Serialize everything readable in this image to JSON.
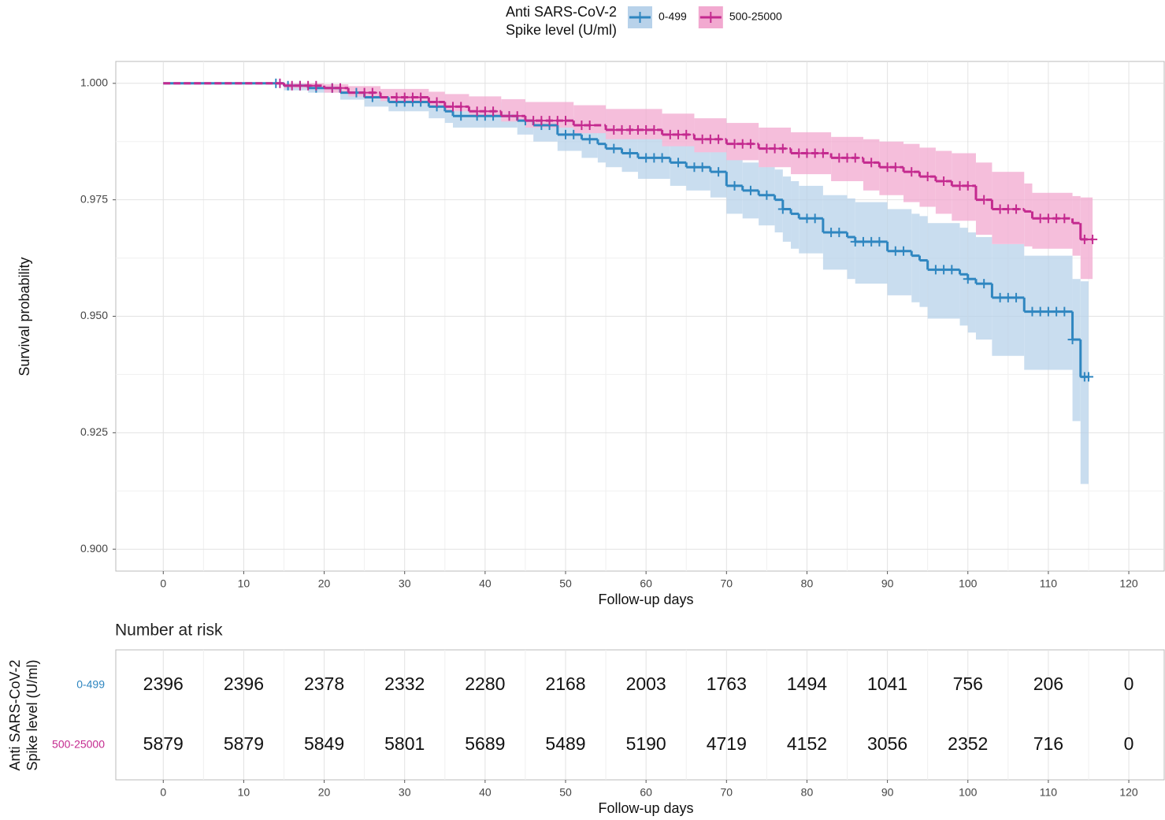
{
  "chart_data": [
    {
      "type": "survival",
      "legend_title": [
        "Anti SARS-CoV-2",
        "Spike level (U/ml)"
      ],
      "x_label": "Follow-up days",
      "y_label": "Survival probability",
      "xlim": [
        -5.9,
        124.4
      ],
      "ylim": [
        0.8953,
        1.0047
      ],
      "xticks": [
        0,
        10,
        20,
        30,
        40,
        50,
        60,
        70,
        80,
        90,
        100,
        110,
        120
      ],
      "yticks": [
        {
          "value": 0.9,
          "label": "0.900"
        },
        {
          "value": 0.925,
          "label": "0.925"
        },
        {
          "value": 0.95,
          "label": "0.950"
        },
        {
          "value": 0.975,
          "label": "0.975"
        },
        {
          "value": 1.0,
          "label": "1.000"
        }
      ],
      "grid": "major+minor",
      "series": [
        {
          "name": "0-499",
          "color": "#2f86c0",
          "band_color": "#b8d2ea",
          "x": [
            0,
            15,
            18,
            22,
            25,
            28,
            33,
            35,
            36,
            44,
            46,
            49,
            52,
            54,
            55,
            57,
            59,
            63,
            65,
            68,
            70,
            72,
            74,
            76,
            77,
            78,
            79,
            82,
            85,
            86,
            90,
            93,
            94,
            95,
            99,
            100,
            101,
            103,
            107,
            113,
            114,
            115
          ],
          "values": [
            1.0,
            0.9995,
            0.999,
            0.998,
            0.997,
            0.996,
            0.995,
            0.994,
            0.993,
            0.992,
            0.991,
            0.989,
            0.988,
            0.987,
            0.986,
            0.985,
            0.984,
            0.983,
            0.982,
            0.981,
            0.978,
            0.977,
            0.976,
            0.975,
            0.973,
            0.972,
            0.971,
            0.968,
            0.967,
            0.966,
            0.964,
            0.963,
            0.962,
            0.96,
            0.959,
            0.958,
            0.957,
            0.954,
            0.951,
            0.945,
            0.937,
            0.937
          ],
          "lower": [
            1.0,
            0.9985,
            0.998,
            0.9965,
            0.995,
            0.994,
            0.9925,
            0.9915,
            0.9905,
            0.989,
            0.9875,
            0.9855,
            0.984,
            0.983,
            0.982,
            0.981,
            0.9795,
            0.978,
            0.977,
            0.9755,
            0.972,
            0.971,
            0.9695,
            0.968,
            0.966,
            0.9645,
            0.9635,
            0.96,
            0.958,
            0.957,
            0.9545,
            0.953,
            0.952,
            0.9495,
            0.948,
            0.9465,
            0.945,
            0.9415,
            0.9385,
            0.9275,
            0.914,
            0.914
          ],
          "upper": [
            1.0,
            1.0,
            0.9998,
            0.9993,
            0.9987,
            0.998,
            0.9975,
            0.9968,
            0.996,
            0.9953,
            0.9945,
            0.9928,
            0.992,
            0.9912,
            0.9905,
            0.9897,
            0.9888,
            0.988,
            0.9872,
            0.9865,
            0.9838,
            0.983,
            0.9822,
            0.9815,
            0.98,
            0.979,
            0.978,
            0.976,
            0.9753,
            0.9745,
            0.973,
            0.972,
            0.9715,
            0.97,
            0.969,
            0.968,
            0.967,
            0.9655,
            0.963,
            0.958,
            0.9575,
            0.9575
          ],
          "censor_x": [
            14,
            15.5,
            17,
            19,
            21,
            24,
            26,
            29,
            30,
            31,
            32,
            34,
            37,
            39,
            40,
            41,
            43,
            45,
            47,
            48,
            50,
            51,
            53,
            56,
            58,
            60,
            61,
            62,
            64,
            66,
            67,
            69,
            71,
            73,
            75,
            77,
            80,
            81,
            83,
            84,
            86,
            87,
            88,
            89,
            91,
            92,
            96,
            97,
            98,
            100,
            102,
            104,
            105,
            106,
            108,
            109,
            110,
            111,
            112,
            113,
            114.5,
            115
          ]
        },
        {
          "name": "500-25000",
          "color": "#c42a8f",
          "band_color": "#f2a9d0",
          "x": [
            0,
            15,
            20,
            23,
            27,
            33,
            35,
            38,
            42,
            45,
            51,
            55,
            62,
            66,
            70,
            74,
            78,
            83,
            87,
            89,
            92,
            94,
            96,
            98,
            101,
            103,
            107,
            108,
            113,
            114,
            115.5
          ],
          "values": [
            1.0,
            0.9995,
            0.999,
            0.998,
            0.997,
            0.996,
            0.995,
            0.994,
            0.993,
            0.992,
            0.991,
            0.99,
            0.989,
            0.988,
            0.987,
            0.986,
            0.985,
            0.984,
            0.983,
            0.982,
            0.981,
            0.98,
            0.979,
            0.978,
            0.975,
            0.973,
            0.9725,
            0.971,
            0.97,
            0.9665,
            0.9665
          ],
          "lower": [
            1.0,
            0.999,
            0.998,
            0.9972,
            0.9962,
            0.995,
            0.994,
            0.9928,
            0.9918,
            0.9905,
            0.9893,
            0.988,
            0.9865,
            0.9852,
            0.9835,
            0.982,
            0.9805,
            0.979,
            0.977,
            0.976,
            0.9745,
            0.9735,
            0.972,
            0.9705,
            0.9675,
            0.9655,
            0.965,
            0.9645,
            0.963,
            0.958,
            0.958
          ],
          "upper": [
            1.0,
            1.0,
            0.9998,
            0.9994,
            0.9988,
            0.9982,
            0.9977,
            0.9972,
            0.9966,
            0.996,
            0.9953,
            0.9945,
            0.9935,
            0.9925,
            0.9915,
            0.9905,
            0.9895,
            0.9885,
            0.988,
            0.9875,
            0.987,
            0.9862,
            0.9855,
            0.985,
            0.983,
            0.981,
            0.9785,
            0.9765,
            0.9758,
            0.9755,
            0.9755
          ],
          "censor_x": [
            14.5,
            16,
            17,
            18,
            19,
            21,
            22,
            25,
            26,
            29,
            30,
            31,
            32,
            34,
            36,
            37,
            39,
            40,
            41,
            43,
            44,
            46,
            47,
            48,
            49,
            50,
            52,
            53,
            56,
            57,
            58,
            59,
            60,
            61,
            63,
            64,
            65,
            67,
            68,
            69,
            71,
            72,
            73,
            75,
            76,
            77,
            79,
            80,
            81,
            82,
            84,
            85,
            86,
            88,
            90,
            91,
            93,
            95,
            97,
            99,
            100,
            102,
            104,
            105,
            106,
            109,
            110,
            111,
            112,
            114.5,
            115.5
          ]
        }
      ]
    },
    {
      "type": "risk_table",
      "title": "Number at risk",
      "y_label": [
        "Anti SARS-CoV-2",
        "Spike level (U/ml)"
      ],
      "x_label": "Follow-up days",
      "xlim": [
        -5.9,
        124.4
      ],
      "xticks": [
        0,
        10,
        20,
        30,
        40,
        50,
        60,
        70,
        80,
        90,
        100,
        110,
        120
      ],
      "times": [
        0,
        10,
        20,
        30,
        40,
        50,
        60,
        70,
        80,
        90,
        100,
        110,
        120
      ],
      "rows": [
        {
          "name": "0-499",
          "color": "#2f86c0",
          "values": [
            2396,
            2396,
            2378,
            2332,
            2280,
            2168,
            2003,
            1763,
            1494,
            1041,
            756,
            206,
            0
          ]
        },
        {
          "name": "500-25000",
          "color": "#c42a8f",
          "values": [
            5879,
            5879,
            5849,
            5801,
            5689,
            5489,
            5190,
            4719,
            4152,
            3056,
            2352,
            716,
            0
          ]
        }
      ]
    }
  ]
}
